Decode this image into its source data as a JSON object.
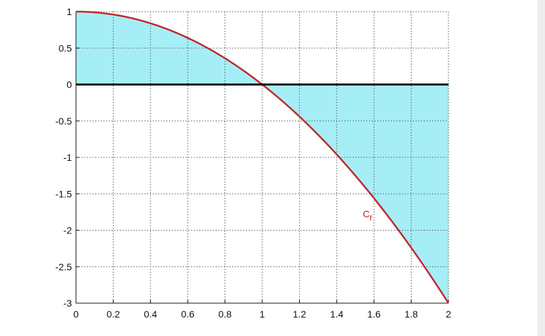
{
  "chart_data": {
    "type": "area",
    "function_expr": "1 - x^2",
    "x_range": [
      0,
      2
    ],
    "xlim": [
      0,
      2
    ],
    "ylim": [
      -3,
      1
    ],
    "x_ticks": [
      "0",
      "0.2",
      "0.4",
      "0.6",
      "0.8",
      "1",
      "1.2",
      "1.4",
      "1.6",
      "1.8",
      "2"
    ],
    "x_tick_values": [
      0,
      0.2,
      0.4,
      0.6,
      0.8,
      1,
      1.2,
      1.4,
      1.6,
      1.8,
      2
    ],
    "y_ticks": [
      "1",
      "0.5",
      "0",
      "-0.5",
      "-1",
      "-1.5",
      "-2",
      "-2.5",
      "-3"
    ],
    "y_tick_values": [
      1,
      0.5,
      0,
      -0.5,
      -1,
      -1.5,
      -2,
      -2.5,
      -3
    ],
    "grid": true,
    "grid_style": "dotted",
    "curve_label": {
      "main": "C",
      "subscript": "f",
      "x": 1.54,
      "y": -1.82
    },
    "colors": {
      "curve": "#c0272d",
      "fill": "#a6eef6",
      "zero_line": "#111111",
      "grid": "#555555",
      "axis": "#111111",
      "label": "#c0272d"
    }
  }
}
